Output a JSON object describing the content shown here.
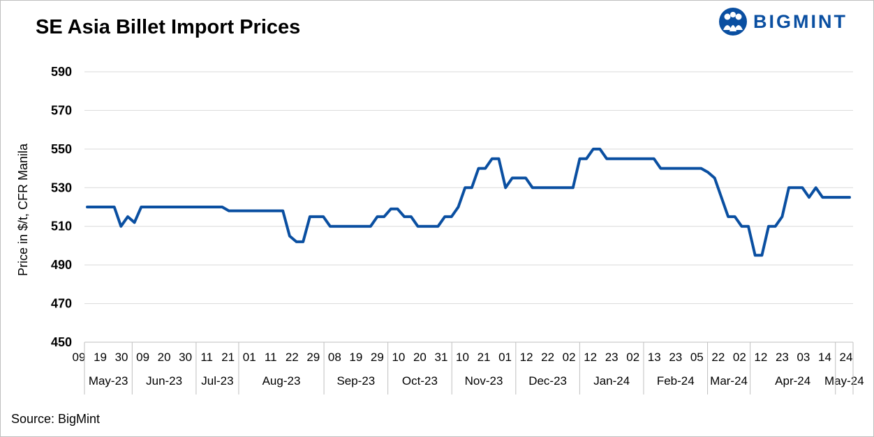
{
  "title": "SE Asia Billet Import Prices",
  "brand": {
    "name": "BIGMINT",
    "color": "#0a4fa1"
  },
  "source": "Source: BigMint",
  "chart_data": {
    "type": "line",
    "title": "SE Asia Billet Import Prices",
    "xlabel": "",
    "ylabel": "Price in $/t, CFR Manila",
    "ylim": [
      450,
      590
    ],
    "yticks": [
      450,
      470,
      490,
      510,
      530,
      550,
      570,
      590
    ],
    "grid": true,
    "legend": "none",
    "line_color": "#0a4fa1",
    "x_day_labels": [
      "09",
      "19",
      "30",
      "09",
      "20",
      "30",
      "11",
      "21",
      "01",
      "11",
      "22",
      "29",
      "08",
      "19",
      "29",
      "10",
      "20",
      "31",
      "10",
      "21",
      "01",
      "12",
      "22",
      "02",
      "12",
      "23",
      "02",
      "13",
      "23",
      "05",
      "22",
      "02",
      "12",
      "23",
      "03",
      "14",
      "24"
    ],
    "months": [
      {
        "label": "May-23",
        "ticks": 3
      },
      {
        "label": "Jun-23",
        "ticks": 3
      },
      {
        "label": "Jul-23",
        "ticks": 2
      },
      {
        "label": "Aug-23",
        "ticks": 4
      },
      {
        "label": "Sep-23",
        "ticks": 3
      },
      {
        "label": "Oct-23",
        "ticks": 3
      },
      {
        "label": "Nov-23",
        "ticks": 3
      },
      {
        "label": "Dec-23",
        "ticks": 3
      },
      {
        "label": "Jan-24",
        "ticks": 3
      },
      {
        "label": "Feb-24",
        "ticks": 3
      },
      {
        "label": "Mar-24",
        "ticks": 2
      },
      {
        "label": "Apr-24",
        "ticks": 4
      },
      {
        "label": "May-24",
        "ticks": 3
      }
    ],
    "series": [
      {
        "values": [
          520,
          520,
          520,
          520,
          520,
          510,
          515,
          512,
          520,
          520,
          520,
          520,
          520,
          520,
          520,
          520,
          520,
          520,
          520,
          520,
          520,
          518,
          518,
          518,
          518,
          518,
          518,
          518,
          518,
          518,
          505,
          502,
          502,
          515,
          515,
          515,
          510,
          510,
          510,
          510,
          510,
          510,
          510,
          515,
          515,
          519,
          519,
          515,
          515,
          510,
          510,
          510,
          510,
          515,
          515,
          520,
          530,
          530,
          540,
          540,
          545,
          545,
          530,
          535,
          535,
          535,
          530,
          530,
          530,
          530,
          530,
          530,
          530,
          545,
          545,
          550,
          550,
          545,
          545,
          545,
          545,
          545,
          545,
          545,
          545,
          540,
          540,
          540,
          540,
          540,
          540,
          540,
          538,
          535,
          525,
          515,
          515,
          510,
          510,
          495,
          495,
          510,
          510,
          515,
          530,
          530,
          530,
          525,
          530,
          525,
          525,
          525,
          525,
          525
        ]
      }
    ]
  }
}
